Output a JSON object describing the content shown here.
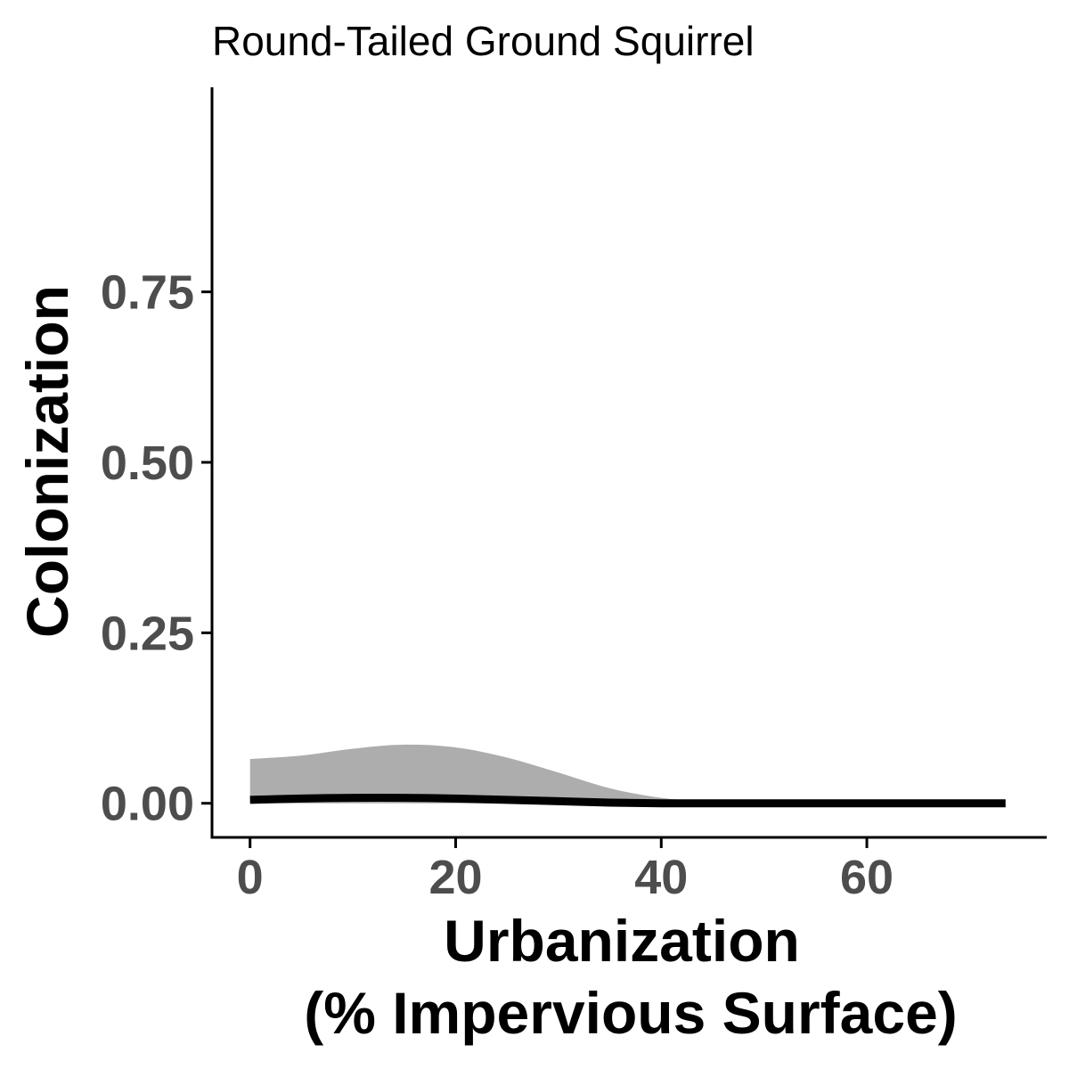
{
  "chart_data": {
    "type": "line",
    "title": "Round-Tailed Ground Squirrel",
    "xlabel": [
      "Urbanization",
      "(% Impervious Surface)"
    ],
    "ylabel": "Colonization",
    "xlim": [
      -3.7,
      77.5
    ],
    "ylim": [
      -0.05,
      1.05
    ],
    "xticks": [
      0,
      20,
      40,
      60
    ],
    "xtick_labels": [
      "0",
      "20",
      "40",
      "60"
    ],
    "yticks": [
      0,
      0.25,
      0.5,
      0.75
    ],
    "ytick_labels": [
      "0.00",
      "0.25",
      "0.50",
      "0.75"
    ],
    "grid": false,
    "legend": "none",
    "colors": {
      "line": "#000000",
      "ribbon": "#adadad",
      "axis": "#000000",
      "tick_label": "#4d4d4d"
    },
    "series": [
      {
        "x": [
          0,
          5,
          10,
          15,
          20,
          25,
          30,
          35,
          40,
          45,
          50,
          55,
          60,
          65,
          70,
          73.5
        ],
        "y": [
          0.005,
          0.007,
          0.008,
          0.008,
          0.007,
          0.005,
          0.003,
          0.001,
          0.0,
          0.0,
          0.0,
          0.0,
          0.0,
          0.0,
          0.0,
          0.0
        ],
        "ymin": [
          0.0,
          0.0,
          0.0,
          0.0,
          0.0,
          0.0,
          0.0,
          0.0,
          0.0,
          0.0,
          0.0,
          0.0,
          0.0,
          0.0,
          0.0,
          0.0
        ],
        "ymax": [
          0.065,
          0.07,
          0.08,
          0.086,
          0.082,
          0.067,
          0.045,
          0.022,
          0.008,
          0.002,
          0.001,
          0.0,
          0.0,
          0.0,
          0.0,
          0.0
        ]
      }
    ]
  }
}
